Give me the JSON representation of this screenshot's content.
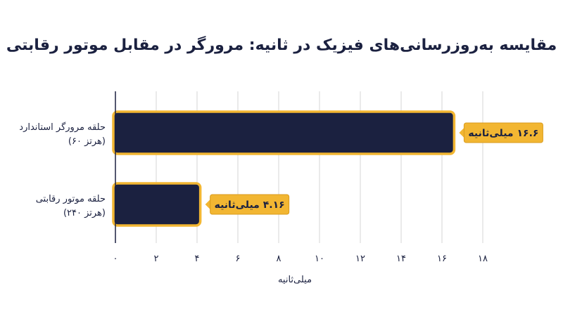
{
  "chart_data": {
    "type": "bar",
    "orientation": "horizontal",
    "title": "مقایسه به‌روزرسانی‌های فیزیک در ثانیه: مرورگر در مقابل موتور رقابتی",
    "xlabel": "میلی‌ثانیه",
    "ylabel": "",
    "xlim": [
      0,
      18
    ],
    "x_ticks": [
      0,
      2,
      4,
      6,
      8,
      10,
      12,
      14,
      16,
      18
    ],
    "x_tick_labels": [
      "۰",
      "۲",
      "۴",
      "۶",
      "۸",
      "۱۰",
      "۱۲",
      "۱۴",
      "۱۶",
      "۱۸"
    ],
    "grid": true,
    "categories": [
      {
        "line1": "حلقه مرورگر استاندارد",
        "line2": "(۶۰ هرتز)"
      },
      {
        "line1": "حلقه موتور رقابتی",
        "line2": "(۲۴۰ هرتز)"
      }
    ],
    "values": [
      16.6,
      4.16
    ],
    "data_labels": [
      "۱۶.۶ میلی‌ثانیه",
      "۴.۱۶ میلی‌ثانیه"
    ],
    "colors": {
      "bar_fill": "#1b2140",
      "bar_border": "#f2b632",
      "label_fill": "#f2b632",
      "label_border": "#d99b1c",
      "grid": "#d6d6d6",
      "axis": "#1b2140"
    }
  }
}
